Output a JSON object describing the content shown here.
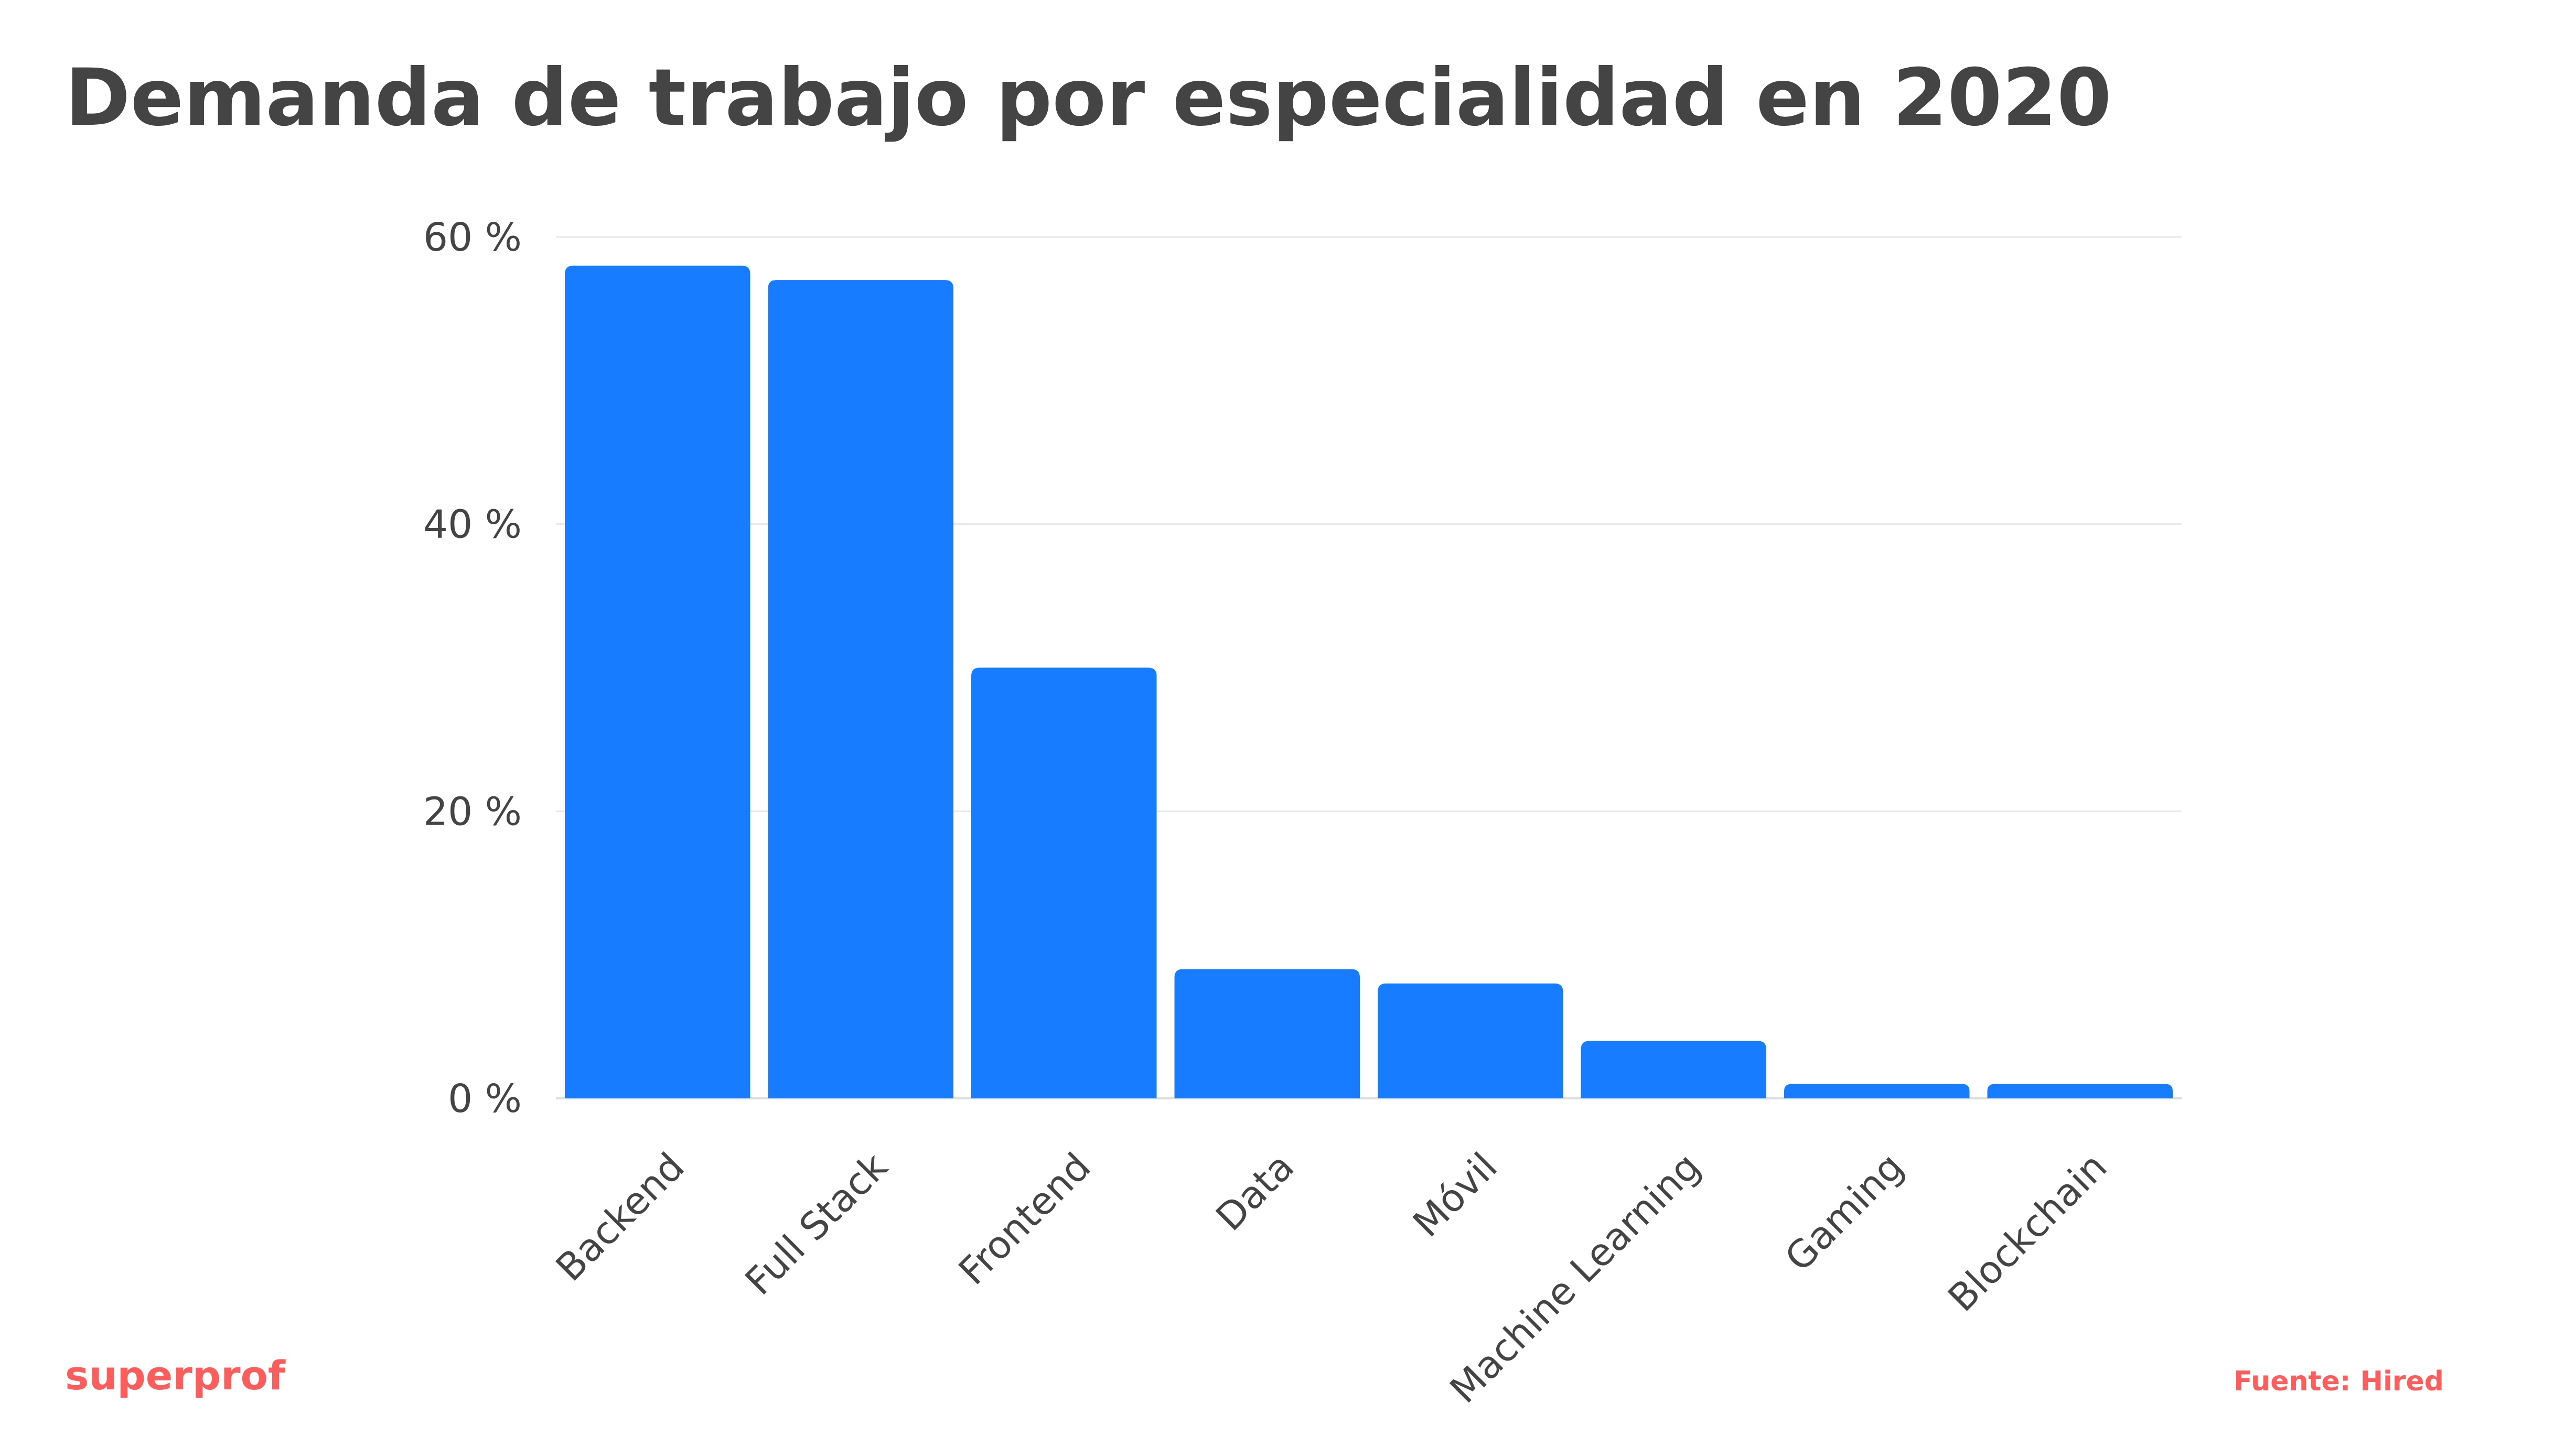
{
  "title": "Demanda de trabajo por especialidad en 2020",
  "brand": "superprof",
  "source": "Fuente: Hired",
  "colors": {
    "bar": "#177CFF",
    "text": "#444444",
    "grid": "#E8E8E8",
    "axis": "#DDDDDD",
    "brand": "#FF5C5C"
  },
  "chart_data": {
    "type": "bar",
    "title": "Demanda de trabajo por especialidad en 2020",
    "xlabel": "",
    "ylabel": "",
    "categories": [
      "Backend",
      "Full Stack",
      "Frontend",
      "Data",
      "Móvil",
      "Machine Learning",
      "Gaming",
      "Blockchain"
    ],
    "values": [
      58,
      57,
      30,
      9,
      8,
      4,
      1,
      1
    ],
    "ylim": [
      0,
      60
    ],
    "yticks": [
      0,
      20,
      40,
      60
    ],
    "ytick_labels": [
      "0 %",
      "20 %",
      "40 %",
      "60 %"
    ],
    "grid": true,
    "legend": "none"
  }
}
